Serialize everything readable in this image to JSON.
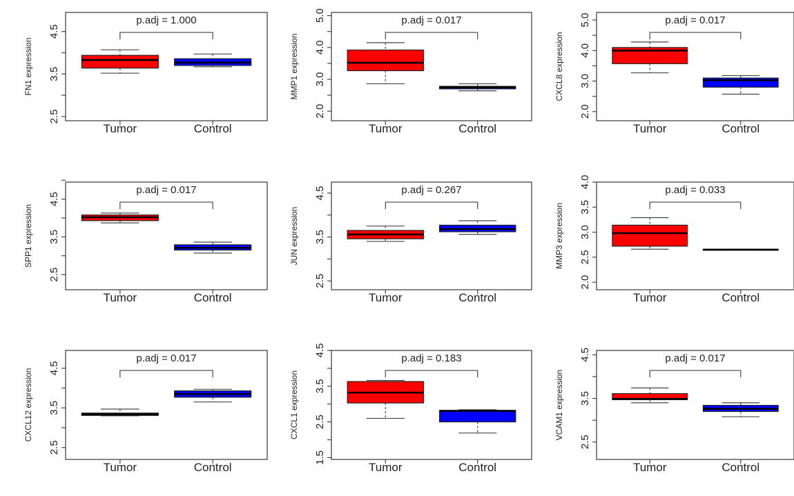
{
  "chart_data": [
    {
      "type": "box",
      "gene": "FN1",
      "ylabel": "FN1 expression",
      "ylim": [
        2.4,
        4.95
      ],
      "yticks": [
        2.5,
        3.0,
        3.5,
        4.0,
        4.5
      ],
      "ytick_labels": [
        "2.5",
        "",
        "3.5",
        "",
        "4.5"
      ],
      "categories": [
        "Tumor",
        "Control"
      ],
      "annotation": "p.adj = 1.000",
      "bracket_y": 4.4,
      "groups": [
        {
          "name": "Tumor",
          "color": "#ff0000",
          "min": 3.52,
          "q1": 3.64,
          "median": 3.83,
          "q3": 3.94,
          "max": 4.07
        },
        {
          "name": "Control",
          "color": "#0000ff",
          "min": 3.67,
          "q1": 3.7,
          "median": 3.77,
          "q3": 3.86,
          "max": 3.97
        }
      ]
    },
    {
      "type": "box",
      "gene": "MMP1",
      "ylabel": "MMP1 expression",
      "ylim": [
        1.7,
        5.1
      ],
      "yticks": [
        2.0,
        2.5,
        3.0,
        3.5,
        4.0,
        4.5,
        5.0
      ],
      "ytick_labels": [
        "2.0",
        "",
        "3.0",
        "",
        "4.0",
        "",
        "5.0"
      ],
      "categories": [
        "Tumor",
        "Control"
      ],
      "annotation": "p.adj = 0.017",
      "bracket_y": 4.4,
      "groups": [
        {
          "name": "Tumor",
          "color": "#ff0000",
          "min": 2.86,
          "q1": 3.27,
          "median": 3.52,
          "q3": 3.92,
          "max": 4.15
        },
        {
          "name": "Control",
          "color": "#0000ff",
          "min": 2.64,
          "q1": 2.7,
          "median": 2.75,
          "q3": 2.78,
          "max": 2.86
        }
      ]
    },
    {
      "type": "box",
      "gene": "CXCL8",
      "ylabel": "CXCL8 expression",
      "ylim": [
        1.7,
        5.25
      ],
      "yticks": [
        2.0,
        2.5,
        3.0,
        3.5,
        4.0,
        4.5,
        5.0
      ],
      "ytick_labels": [
        "2.0",
        "",
        "3.0",
        "",
        "4.0",
        "",
        "5.0"
      ],
      "categories": [
        "Tumor",
        "Control"
      ],
      "annotation": "p.adj = 0.017",
      "bracket_y": 4.55,
      "groups": [
        {
          "name": "Tumor",
          "color": "#ff0000",
          "min": 3.27,
          "q1": 3.57,
          "median": 4.0,
          "q3": 4.1,
          "max": 4.28
        },
        {
          "name": "Control",
          "color": "#0000ff",
          "min": 2.57,
          "q1": 2.8,
          "median": 3.03,
          "q3": 3.1,
          "max": 3.18
        }
      ]
    },
    {
      "type": "box",
      "gene": "SPP1",
      "ylabel": "SPP1 expression",
      "ylim": [
        2.1,
        4.95
      ],
      "yticks": [
        2.5,
        3.0,
        3.5,
        4.0,
        4.5,
        5.0
      ],
      "ytick_labels": [
        "2.5",
        "",
        "3.5",
        "",
        "4.5",
        ""
      ],
      "categories": [
        "Tumor",
        "Control"
      ],
      "annotation": "p.adj = 0.017",
      "bracket_y": 4.38,
      "groups": [
        {
          "name": "Tumor",
          "color": "#ff0000",
          "min": 3.87,
          "q1": 3.93,
          "median": 4.02,
          "q3": 4.08,
          "max": 4.13
        },
        {
          "name": "Control",
          "color": "#0000ff",
          "min": 3.07,
          "q1": 3.15,
          "median": 3.21,
          "q3": 3.29,
          "max": 3.36
        }
      ]
    },
    {
      "type": "box",
      "gene": "JUN",
      "ylabel": "JUN expression",
      "ylim": [
        2.3,
        4.75
      ],
      "yticks": [
        2.5,
        3.0,
        3.5,
        4.0,
        4.5
      ],
      "ytick_labels": [
        "2.5",
        "",
        "3.5",
        "",
        "4.5"
      ],
      "categories": [
        "Tumor",
        "Control"
      ],
      "annotation": "p.adj = 0.267",
      "bracket_y": 4.2,
      "groups": [
        {
          "name": "Tumor",
          "color": "#ff0000",
          "min": 3.4,
          "q1": 3.46,
          "median": 3.56,
          "q3": 3.65,
          "max": 3.75
        },
        {
          "name": "Control",
          "color": "#0000ff",
          "min": 3.56,
          "q1": 3.62,
          "median": 3.68,
          "q3": 3.77,
          "max": 3.87
        }
      ]
    },
    {
      "type": "box",
      "gene": "MMP3",
      "ylabel": "MMP3 expression",
      "ylim": [
        1.85,
        4.0
      ],
      "yticks": [
        2.0,
        2.5,
        3.0,
        3.5,
        4.0
      ],
      "ytick_labels": [
        "2.0",
        "2.5",
        "3.0",
        "3.5",
        "4.0"
      ],
      "categories": [
        "Tumor",
        "Control"
      ],
      "annotation": "p.adj = 0.033",
      "bracket_y": 3.6,
      "groups": [
        {
          "name": "Tumor",
          "color": "#ff0000",
          "min": 2.66,
          "q1": 2.72,
          "median": 2.98,
          "q3": 3.14,
          "max": 3.29
        },
        {
          "name": "Control",
          "color": "#0000ff",
          "min": 2.65,
          "q1": 2.65,
          "median": 2.65,
          "q3": 2.66,
          "max": 2.66
        }
      ]
    },
    {
      "type": "box",
      "gene": "CXCL12",
      "ylabel": "CXCL12 expression",
      "ylim": [
        2.2,
        4.95
      ],
      "yticks": [
        2.5,
        3.0,
        3.5,
        4.0,
        4.5
      ],
      "ytick_labels": [
        "2.5",
        "",
        "3.5",
        "",
        "4.5"
      ],
      "categories": [
        "Tumor",
        "Control"
      ],
      "annotation": "p.adj = 0.017",
      "bracket_y": 4.2,
      "groups": [
        {
          "name": "Tumor",
          "color": "#5a0000",
          "min": 3.3,
          "q1": 3.31,
          "median": 3.34,
          "q3": 3.37,
          "max": 3.47
        },
        {
          "name": "Control",
          "color": "#0000ff",
          "min": 3.65,
          "q1": 3.77,
          "median": 3.85,
          "q3": 3.93,
          "max": 3.97
        }
      ]
    },
    {
      "type": "box",
      "gene": "CXCL1",
      "ylabel": "CXCL1 expression",
      "ylim": [
        1.45,
        4.5
      ],
      "yticks": [
        1.5,
        2.0,
        2.5,
        3.0,
        3.5,
        4.0,
        4.5
      ],
      "ytick_labels": [
        "1.5",
        "",
        "2.5",
        "",
        "3.5",
        "",
        "4.5"
      ],
      "categories": [
        "Tumor",
        "Control"
      ],
      "annotation": "p.adj = 0.183",
      "bracket_y": 3.9,
      "groups": [
        {
          "name": "Tumor",
          "color": "#ff0000",
          "min": 2.6,
          "q1": 3.03,
          "median": 3.32,
          "q3": 3.63,
          "max": 3.66
        },
        {
          "name": "Control",
          "color": "#0000ff",
          "min": 2.19,
          "q1": 2.5,
          "median": 2.81,
          "q3": 2.82,
          "max": 2.84
        }
      ]
    },
    {
      "type": "box",
      "gene": "VCAM1",
      "ylabel": "VCAM1 expression",
      "ylim": [
        2.1,
        4.6
      ],
      "yticks": [
        2.5,
        3.0,
        3.5,
        4.0,
        4.5
      ],
      "ytick_labels": [
        "2.5",
        "",
        "3.5",
        "",
        "4.5"
      ],
      "categories": [
        "Tumor",
        "Control"
      ],
      "annotation": "p.adj = 0.017",
      "bracket_y": 3.98,
      "groups": [
        {
          "name": "Tumor",
          "color": "#ff0000",
          "min": 3.4,
          "q1": 3.47,
          "median": 3.49,
          "q3": 3.61,
          "max": 3.74
        },
        {
          "name": "Control",
          "color": "#0000ff",
          "min": 3.08,
          "q1": 3.2,
          "median": 3.26,
          "q3": 3.34,
          "max": 3.4
        }
      ]
    }
  ]
}
